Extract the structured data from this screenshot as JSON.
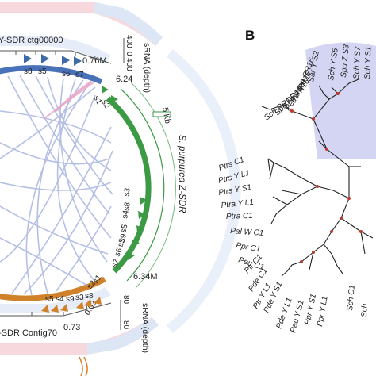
{
  "panel_b": {
    "letter": "B"
  },
  "circos": {
    "y_sdr_label": "Y-SDR ctg00000",
    "z_sdr_label": "S. purpurea Z-SDR",
    "contig_label": "-SDR Contig70",
    "size_076": "0.76M",
    "size_624": "6.24",
    "size_634": "6.34M",
    "size_073": "0.73",
    "scale_label": "5 Kb",
    "srna_top_label": "sRNA (depth)",
    "srna_bottom_label": "sRNA (depth)",
    "top_axis": [
      "400",
      "0",
      "400"
    ],
    "bottom_axis": [
      "80",
      "0.02",
      "80"
    ],
    "blue_marks": [
      "s8",
      "s5",
      "s6",
      "s7"
    ],
    "green_marks": [
      "s1",
      "s2",
      "s3",
      "s4",
      "s8",
      "s5",
      "s9",
      "s7",
      "s6",
      "s5"
    ],
    "orange_marks": [
      "s5",
      "s4",
      "s9",
      "s3",
      "s8",
      "s2",
      "s1"
    ],
    "colors": {
      "blue": "#4a72b8",
      "green": "#3c9a45",
      "orange": "#d0822a",
      "link": "#a8b4e0",
      "pink": "#e9a6c9",
      "band_pink": "#f7d9dd",
      "band_blue": "#dce6f5"
    }
  },
  "tree": {
    "highlight_color": "#c9cbf0",
    "node_color": "#c0392b",
    "upper_tips": [
      "Sar Y S2",
      "Sch Y S5",
      "Spu Z S3",
      "Sch Y S7",
      "Sch Y S1"
    ],
    "rr_tips": [
      "Ptr RR16",
      "Pal RR16",
      "Peu RR16",
      "Spu RR16",
      "Sch RR16"
    ],
    "left_tips": [
      "Ptrs C1",
      "Ptrs Y L1",
      "Ptrs Y S1",
      "Ptra Y L1",
      "Ptra C1",
      "Pal W C1",
      "Ppr C1",
      "Peu C1",
      "Ptr C1",
      "Pde C1",
      "Ptr Y L1",
      "Pde Y S1",
      "Pde Y L1",
      "Peu Y S1",
      "Ppr Y S1",
      "Ppr Y L1",
      "Sch C1",
      "Sch"
    ]
  }
}
